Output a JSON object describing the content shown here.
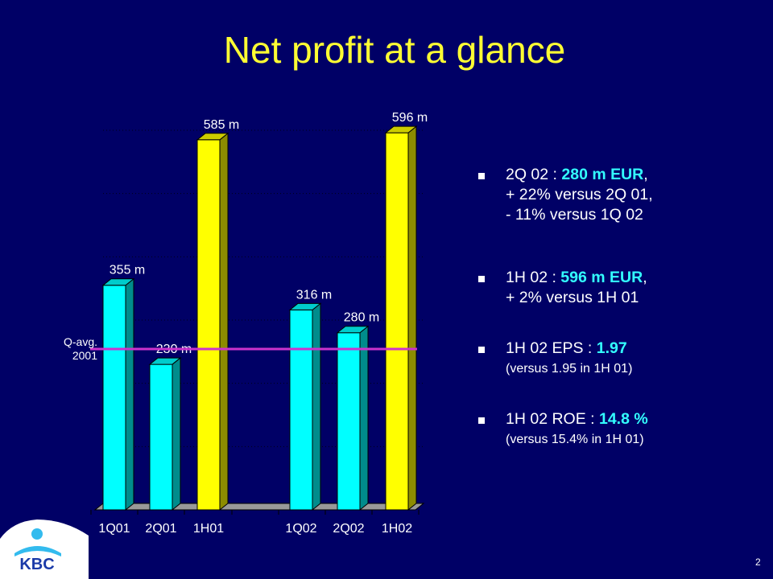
{
  "slide": {
    "title": "Net profit at a glance",
    "page_number": "2",
    "logo_text": "KBC"
  },
  "chart_data": {
    "type": "bar",
    "categories": [
      "1Q01",
      "2Q01",
      "1H01",
      "1Q02",
      "2Q02",
      "1H02"
    ],
    "values": [
      355,
      230,
      585,
      316,
      280,
      596
    ],
    "data_labels": [
      "355 m",
      "230 m",
      "585 m",
      "316 m",
      "280 m",
      "596 m"
    ],
    "bar_colors": [
      "#00ffff",
      "#00ffff",
      "#ffff00",
      "#00ffff",
      "#00ffff",
      "#ffff00"
    ],
    "ylim": [
      0,
      600
    ],
    "grid": true,
    "reference_line": {
      "label_line1": "Q-avg.",
      "label_line2": "2001",
      "value": 253,
      "color": "#cc33cc"
    }
  },
  "bullets": [
    {
      "line1_pre": "2Q 02 : ",
      "line1_hl": "280 m EUR",
      "line1_post": ",",
      "line2": "+ 22% versus 2Q 01,",
      "line3": "- 11% versus 1Q 02"
    },
    {
      "line1_pre": "1H 02 : ",
      "line1_hl": "596 m EUR",
      "line1_post": ",",
      "line2": "+ 2% versus 1H 01"
    },
    {
      "line1_pre": "1H 02 EPS : ",
      "line1_hl": "1.97",
      "line2": "(versus 1.95 in 1H 01)"
    },
    {
      "line1_pre": "1H 02 ROE : ",
      "line1_hl": "14.8 %",
      "line2": "(versus 15.4% in 1H 01)"
    }
  ],
  "colors": {
    "background": "#000066",
    "title": "#ffff33",
    "highlight": "#33ffff"
  }
}
